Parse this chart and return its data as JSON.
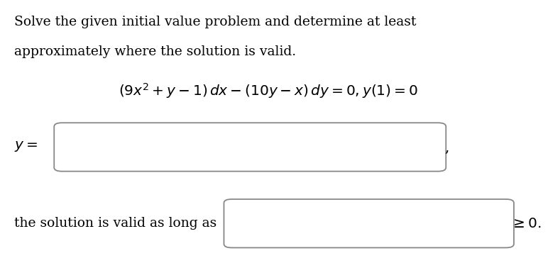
{
  "background_color": "#ffffff",
  "text_line1": "Solve the given initial value problem and determine at least",
  "text_line2": "approximately where the solution is valid.",
  "equation": "$(9x^2 + y - 1)\\, dx - (10y - x)\\, dy = 0, y(1) = 0$",
  "y_label": "$y = $",
  "validity_text": "the solution is valid as long as",
  "validity_suffix": "$\\geq 0.$",
  "text_color": "#000000",
  "box_color": "#888888",
  "font_size_text": 13.5,
  "font_size_eq": 14.5,
  "font_size_label": 14.5
}
